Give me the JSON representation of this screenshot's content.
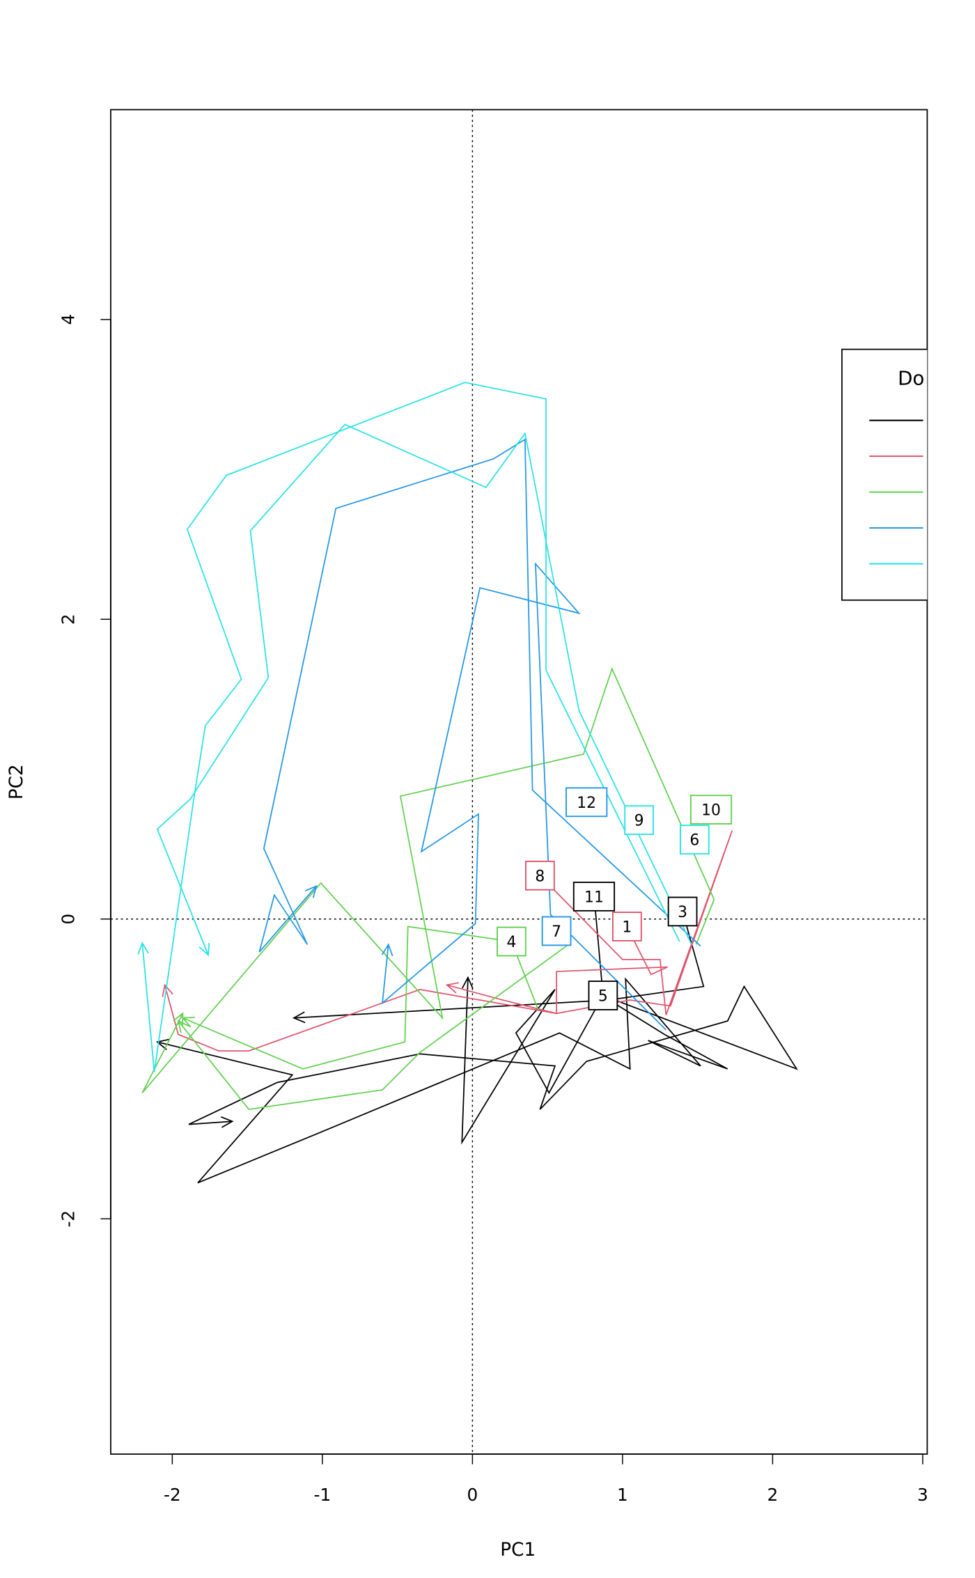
{
  "chart_data": {
    "type": "line",
    "title": "",
    "xlabel": "PC1",
    "ylabel": "PC2",
    "xlim": [
      -2.41,
      3.03
    ],
    "ylim": [
      -3.57,
      5.4
    ],
    "xticks": [
      -2,
      -1,
      0,
      1,
      2,
      3
    ],
    "yticks": [
      -2,
      0,
      2,
      4
    ],
    "xtick_labels": [
      "-2",
      "-1",
      "0",
      "1",
      "2",
      "3"
    ],
    "ytick_labels": [
      "-2",
      "0",
      "2",
      "4"
    ],
    "reference_lines": {
      "x": 0,
      "y": 0,
      "style": "dotted"
    },
    "grid": false,
    "legend": {
      "title": "Do",
      "placement": "right",
      "colors": [
        "#000000",
        "#DF536B",
        "#61D04F",
        "#2297E6",
        "#28E2E5"
      ]
    },
    "series": [
      {
        "color": "#000000",
        "label": "11",
        "label_at": [
          0.81,
          0.15
        ],
        "points": [
          [
            0.81,
            0.16
          ],
          [
            0.87,
            -0.51
          ],
          [
            0.51,
            -1.16
          ],
          [
            0.29,
            -0.76
          ],
          [
            0.55,
            -0.47
          ],
          [
            -0.07,
            -1.49
          ],
          [
            -0.03,
            -0.39
          ]
        ]
      },
      {
        "color": "#000000",
        "label": "3",
        "label_at": [
          1.4,
          0.05
        ],
        "points": [
          [
            1.4,
            0.05
          ],
          [
            1.54,
            -0.45
          ],
          [
            0.91,
            -0.54
          ],
          [
            -1.19,
            -0.66
          ]
        ]
      },
      {
        "color": "#000000",
        "label": "5",
        "label_at": [
          0.87,
          -0.51
        ],
        "points": [
          [
            0.87,
            -0.51
          ],
          [
            2.16,
            -1.0
          ],
          [
            1.81,
            -0.45
          ],
          [
            1.7,
            -0.68
          ],
          [
            0.76,
            -0.95
          ],
          [
            0.45,
            -1.27
          ],
          [
            0.55,
            -0.98
          ],
          [
            -0.35,
            -0.9
          ],
          [
            -1.3,
            -1.09
          ],
          [
            -1.89,
            -1.37
          ],
          [
            -1.6,
            -1.35
          ]
        ]
      },
      {
        "color": "#000000",
        "label": "",
        "label_at": null,
        "points": [
          [
            0.91,
            -0.54
          ],
          [
            1.28,
            -0.77
          ],
          [
            1.7,
            -1.0
          ],
          [
            1.17,
            -0.81
          ],
          [
            1.52,
            -0.98
          ],
          [
            1.02,
            -0.4
          ],
          [
            1.05,
            -1.0
          ],
          [
            0.58,
            -0.76
          ],
          [
            -1.03,
            -1.43
          ],
          [
            -1.83,
            -1.76
          ],
          [
            -1.2,
            -1.04
          ],
          [
            -2.1,
            -0.82
          ]
        ]
      },
      {
        "color": "#DF536B",
        "label": "8",
        "label_at": [
          0.45,
          0.29
        ],
        "points": [
          [
            0.45,
            0.29
          ],
          [
            1.0,
            -0.27
          ],
          [
            1.25,
            -0.27
          ],
          [
            1.29,
            -0.64
          ],
          [
            1.73,
            0.59
          ],
          [
            1.32,
            -0.58
          ],
          [
            1.05,
            -0.54
          ],
          [
            0.56,
            -0.63
          ],
          [
            -0.35,
            -0.47
          ],
          [
            -1.49,
            -0.88
          ],
          [
            -1.69,
            -0.88
          ],
          [
            -1.96,
            -0.77
          ],
          [
            -2.05,
            -0.44
          ]
        ]
      },
      {
        "color": "#DF536B",
        "label": "1",
        "label_at": [
          1.03,
          -0.05
        ],
        "points": [
          [
            1.03,
            -0.05
          ],
          [
            1.19,
            -0.37
          ],
          [
            1.3,
            -0.32
          ],
          [
            0.56,
            -0.35
          ],
          [
            0.56,
            -0.63
          ],
          [
            0.2,
            -0.54
          ],
          [
            -0.17,
            -0.44
          ]
        ]
      },
      {
        "color": "#61D04F",
        "label": "10",
        "label_at": [
          1.59,
          0.73
        ],
        "points": [
          [
            1.49,
            -0.17
          ],
          [
            1.61,
            0.13
          ],
          [
            0.93,
            1.67
          ],
          [
            0.74,
            1.1
          ],
          [
            -0.48,
            0.82
          ],
          [
            -0.2,
            -0.66
          ],
          [
            -1.01,
            0.24
          ],
          [
            -2.2,
            -1.16
          ],
          [
            -1.93,
            -0.63
          ]
        ]
      },
      {
        "color": "#61D04F",
        "label": "4",
        "label_at": [
          0.26,
          -0.15
        ],
        "points": [
          [
            0.44,
            -0.61
          ],
          [
            0.26,
            -0.15
          ],
          [
            -0.43,
            -0.05
          ],
          [
            -0.45,
            -0.82
          ],
          [
            -1.13,
            -1.0
          ],
          [
            -1.93,
            -0.66
          ]
        ]
      },
      {
        "color": "#61D04F",
        "label": "",
        "label_at": null,
        "points": [
          [
            0.64,
            -0.17
          ],
          [
            -0.35,
            -0.89
          ],
          [
            -0.6,
            -1.14
          ],
          [
            -1.49,
            -1.27
          ],
          [
            -1.96,
            -0.68
          ]
        ]
      },
      {
        "color": "#2297E6",
        "label": "12",
        "label_at": [
          0.76,
          0.78
        ],
        "points": [
          [
            1.52,
            -0.18
          ],
          [
            0.4,
            0.86
          ],
          [
            0.35,
            3.2
          ],
          [
            0.14,
            3.07
          ],
          [
            -0.91,
            2.74
          ],
          [
            -1.39,
            0.47
          ],
          [
            -1.1,
            -0.17
          ],
          [
            -1.32,
            0.16
          ],
          [
            -1.42,
            -0.22
          ],
          [
            -1.04,
            0.22
          ]
        ]
      },
      {
        "color": "#2297E6",
        "label": "7",
        "label_at": [
          0.56,
          -0.08
        ],
        "points": [
          [
            1.29,
            -0.74
          ],
          [
            0.52,
            0.03
          ],
          [
            0.42,
            2.37
          ],
          [
            0.71,
            2.04
          ],
          [
            0.05,
            2.21
          ],
          [
            -0.34,
            0.45
          ],
          [
            0.04,
            0.7
          ],
          [
            0.02,
            -0.03
          ],
          [
            -0.6,
            -0.56
          ],
          [
            -0.56,
            -0.17
          ]
        ]
      },
      {
        "color": "#28E2E5",
        "label": "9",
        "label_at": [
          1.11,
          0.66
        ],
        "points": [
          [
            1.38,
            -0.15
          ],
          [
            0.49,
            1.66
          ],
          [
            0.49,
            3.47
          ],
          [
            -0.05,
            3.58
          ],
          [
            -1.64,
            2.96
          ],
          [
            -1.9,
            2.6
          ],
          [
            -1.54,
            1.6
          ],
          [
            -1.78,
            1.29
          ],
          [
            -1.86,
            0.78
          ],
          [
            -2.12,
            -1.02
          ],
          [
            -2.2,
            -0.16
          ]
        ]
      },
      {
        "color": "#28E2E5",
        "label": "6",
        "label_at": [
          1.48,
          0.53
        ],
        "points": [
          [
            1.46,
            -0.17
          ],
          [
            0.71,
            1.39
          ],
          [
            0.35,
            3.24
          ],
          [
            0.09,
            2.88
          ],
          [
            -0.85,
            3.3
          ],
          [
            -1.48,
            2.59
          ],
          [
            -1.36,
            1.61
          ],
          [
            -1.88,
            0.8
          ],
          [
            -2.1,
            0.6
          ],
          [
            -1.76,
            -0.24
          ]
        ]
      }
    ]
  }
}
